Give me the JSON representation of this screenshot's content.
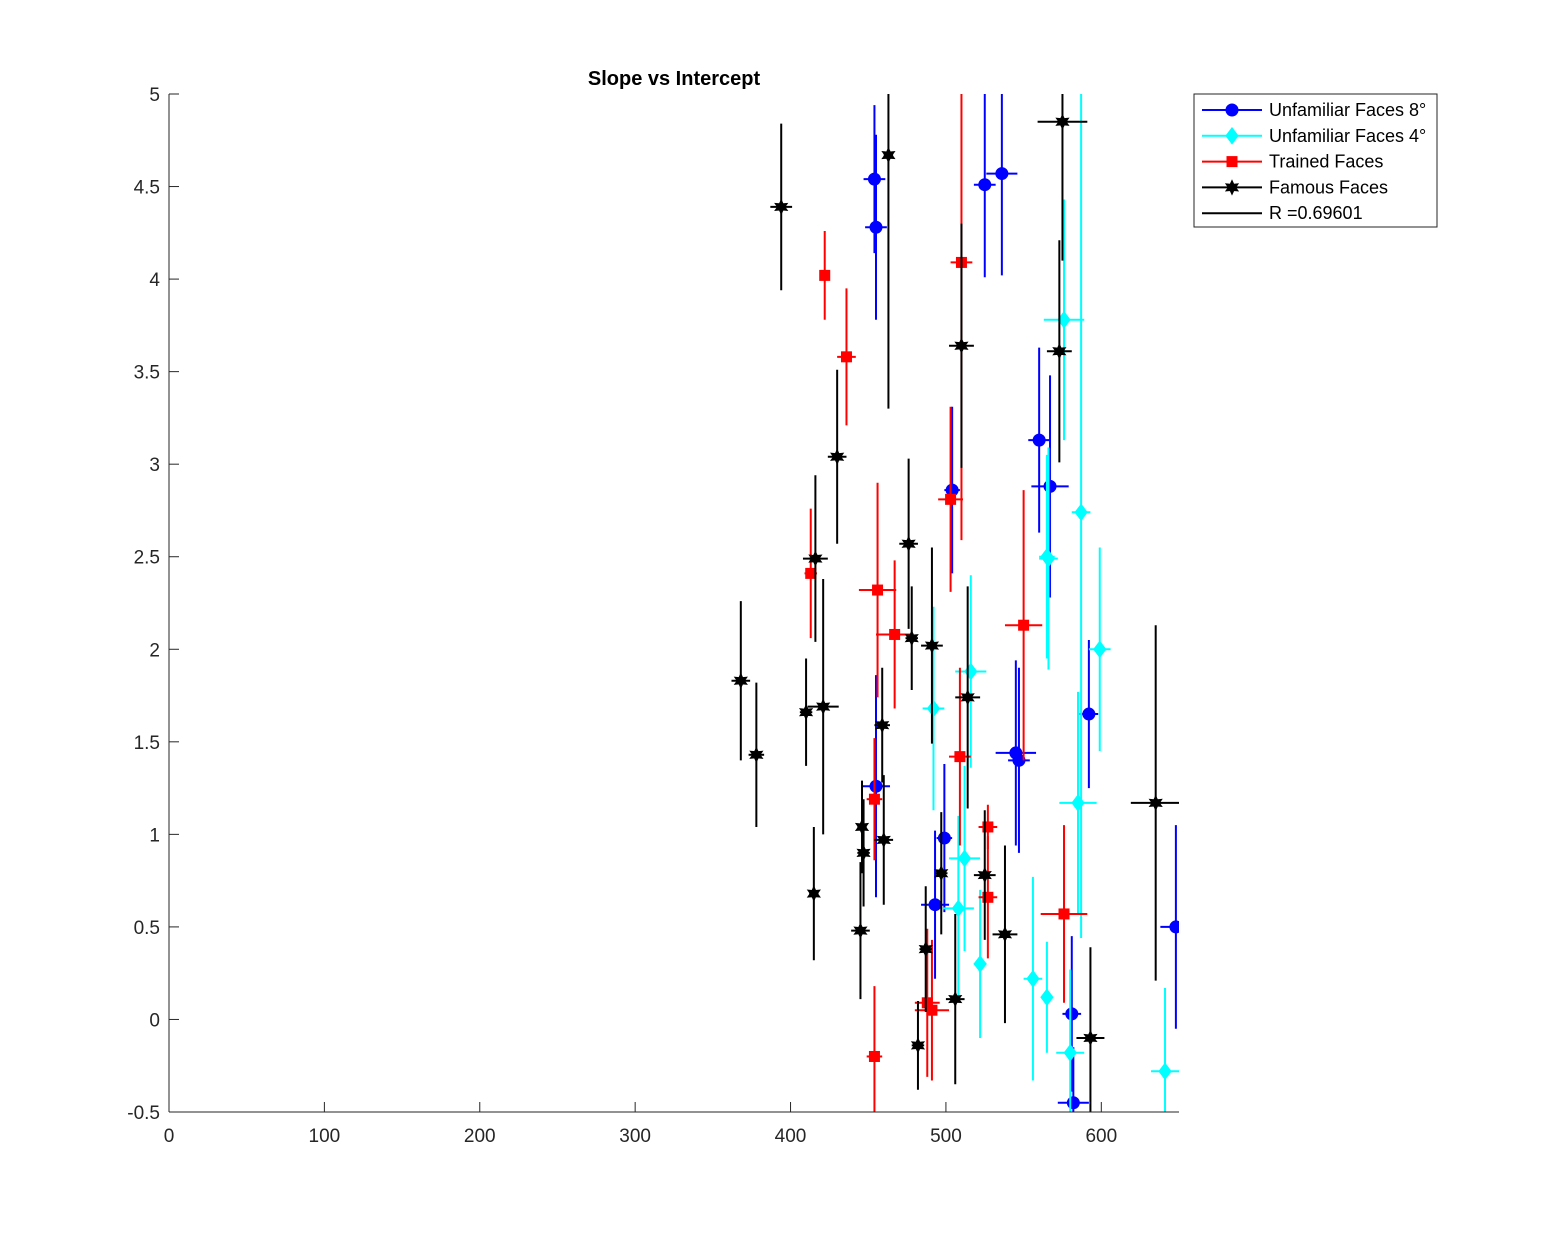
{
  "chart_data": {
    "type": "scatter",
    "title": "Slope vs Intercept",
    "xlabel": "",
    "ylabel": "",
    "xlim": [
      0,
      650
    ],
    "ylim": [
      -0.5,
      5
    ],
    "xticks": [
      0,
      100,
      200,
      300,
      400,
      500,
      600
    ],
    "yticks": [
      -0.5,
      0,
      0.5,
      1,
      1.5,
      2,
      2.5,
      3,
      3.5,
      4,
      4.5,
      5
    ],
    "grid": false,
    "legend_position": "outside-top-right",
    "series": [
      {
        "name": "Unfamiliar Faces 8°",
        "color": "#0000ff",
        "marker": "circle",
        "points": [
          {
            "x": 454,
            "y": 4.54,
            "xerr": 7,
            "yerr": 0.4
          },
          {
            "x": 455,
            "y": 4.28,
            "xerr": 7,
            "yerr": 0.5
          },
          {
            "x": 525,
            "y": 4.51,
            "xerr": 7,
            "yerr": 0.5
          },
          {
            "x": 536,
            "y": 4.57,
            "xerr": 10,
            "yerr": 0.55
          },
          {
            "x": 560,
            "y": 3.13,
            "xerr": 7,
            "yerr": 0.5
          },
          {
            "x": 567,
            "y": 2.88,
            "xerr": 12,
            "yerr": 0.6
          },
          {
            "x": 504,
            "y": 2.86,
            "xerr": 5,
            "yerr": 0.45
          },
          {
            "x": 592,
            "y": 1.65,
            "xerr": 6,
            "yerr": 0.4
          },
          {
            "x": 545,
            "y": 1.44,
            "xerr": 13,
            "yerr": 0.5
          },
          {
            "x": 547,
            "y": 1.4,
            "xerr": 7,
            "yerr": 0.5
          },
          {
            "x": 455,
            "y": 1.26,
            "xerr": 9,
            "yerr": 0.6
          },
          {
            "x": 499,
            "y": 0.98,
            "xerr": 5,
            "yerr": 0.4
          },
          {
            "x": 493,
            "y": 0.62,
            "xerr": 9,
            "yerr": 0.4
          },
          {
            "x": 648,
            "y": 0.5,
            "xerr": 10,
            "yerr": 0.55
          },
          {
            "x": 581,
            "y": 0.03,
            "xerr": 6,
            "yerr": 0.42
          },
          {
            "x": 582,
            "y": -0.45,
            "xerr": 10,
            "yerr": 0.3
          }
        ]
      },
      {
        "name": "Unfamiliar Faces 4°",
        "color": "#00ffff",
        "marker": "diamond",
        "points": [
          {
            "x": 576,
            "y": 3.78,
            "xerr": 13,
            "yerr": 0.65
          },
          {
            "x": 587,
            "y": 2.74,
            "xerr": 6,
            "yerr": 2.3
          },
          {
            "x": 565,
            "y": 2.5,
            "xerr": 5,
            "yerr": 0.55
          },
          {
            "x": 566,
            "y": 2.49,
            "xerr": 6,
            "yerr": 0.6
          },
          {
            "x": 599,
            "y": 2.0,
            "xerr": 7,
            "yerr": 0.55
          },
          {
            "x": 516,
            "y": 1.88,
            "xerr": 10,
            "yerr": 0.52
          },
          {
            "x": 492,
            "y": 1.68,
            "xerr": 7,
            "yerr": 0.55
          },
          {
            "x": 585,
            "y": 1.17,
            "xerr": 12,
            "yerr": 0.6
          },
          {
            "x": 512,
            "y": 0.87,
            "xerr": 10,
            "yerr": 0.5
          },
          {
            "x": 508,
            "y": 0.6,
            "xerr": 10,
            "yerr": 0.5
          },
          {
            "x": 522,
            "y": 0.3,
            "xerr": 4,
            "yerr": 0.4
          },
          {
            "x": 556,
            "y": 0.22,
            "xerr": 6,
            "yerr": 0.55
          },
          {
            "x": 565,
            "y": 0.12,
            "xerr": 3,
            "yerr": 0.3
          },
          {
            "x": 580,
            "y": -0.18,
            "xerr": 9,
            "yerr": 0.45
          },
          {
            "x": 641,
            "y": -0.28,
            "xerr": 9,
            "yerr": 0.45
          }
        ]
      },
      {
        "name": "Trained Faces",
        "color": "#ff0000",
        "marker": "square",
        "points": [
          {
            "x": 510,
            "y": 4.09,
            "xerr": 7,
            "yerr": 1.5
          },
          {
            "x": 422,
            "y": 4.02,
            "xerr": 3,
            "yerr": 0.24
          },
          {
            "x": 436,
            "y": 3.58,
            "xerr": 6,
            "yerr": 0.37
          },
          {
            "x": 503,
            "y": 2.81,
            "xerr": 8,
            "yerr": 0.5
          },
          {
            "x": 413,
            "y": 2.41,
            "xerr": 4,
            "yerr": 0.35
          },
          {
            "x": 456,
            "y": 2.32,
            "xerr": 12,
            "yerr": 0.58
          },
          {
            "x": 550,
            "y": 2.13,
            "xerr": 12,
            "yerr": 0.73
          },
          {
            "x": 467,
            "y": 2.08,
            "xerr": 12,
            "yerr": 0.4
          },
          {
            "x": 509,
            "y": 1.42,
            "xerr": 7,
            "yerr": 0.48
          },
          {
            "x": 454,
            "y": 1.19,
            "xerr": 5,
            "yerr": 0.33
          },
          {
            "x": 527,
            "y": 1.04,
            "xerr": 6,
            "yerr": 0.12
          },
          {
            "x": 527,
            "y": 0.66,
            "xerr": 6,
            "yerr": 0.33
          },
          {
            "x": 576,
            "y": 0.57,
            "xerr": 15,
            "yerr": 0.48
          },
          {
            "x": 488,
            "y": 0.09,
            "xerr": 8,
            "yerr": 0.4
          },
          {
            "x": 491,
            "y": 0.05,
            "xerr": 11,
            "yerr": 0.38
          },
          {
            "x": 454,
            "y": -0.2,
            "xerr": 5,
            "yerr": 0.38
          }
        ]
      },
      {
        "name": "Famous Faces",
        "color": "#000000",
        "marker": "hexagram",
        "points": [
          {
            "x": 575,
            "y": 4.85,
            "xerr": 16,
            "yerr": 0.75
          },
          {
            "x": 463,
            "y": 4.67,
            "xerr": 3,
            "yerr": 1.37
          },
          {
            "x": 394,
            "y": 4.39,
            "xerr": 7,
            "yerr": 0.45
          },
          {
            "x": 510,
            "y": 3.64,
            "xerr": 8,
            "yerr": 0.66
          },
          {
            "x": 573,
            "y": 3.61,
            "xerr": 8,
            "yerr": 0.6
          },
          {
            "x": 430,
            "y": 3.04,
            "xerr": 6,
            "yerr": 0.47
          },
          {
            "x": 476,
            "y": 2.57,
            "xerr": 6,
            "yerr": 0.46
          },
          {
            "x": 416,
            "y": 2.49,
            "xerr": 8,
            "yerr": 0.45
          },
          {
            "x": 478,
            "y": 2.06,
            "xerr": 4,
            "yerr": 0.28
          },
          {
            "x": 491,
            "y": 2.02,
            "xerr": 7,
            "yerr": 0.53
          },
          {
            "x": 368,
            "y": 1.83,
            "xerr": 6,
            "yerr": 0.43
          },
          {
            "x": 514,
            "y": 1.74,
            "xerr": 8,
            "yerr": 0.6
          },
          {
            "x": 421,
            "y": 1.69,
            "xerr": 10,
            "yerr": 0.69
          },
          {
            "x": 410,
            "y": 1.66,
            "xerr": 4,
            "yerr": 0.29
          },
          {
            "x": 459,
            "y": 1.59,
            "xerr": 5,
            "yerr": 0.31
          },
          {
            "x": 378,
            "y": 1.43,
            "xerr": 5,
            "yerr": 0.39
          },
          {
            "x": 635,
            "y": 1.17,
            "xerr": 16,
            "yerr": 0.96
          },
          {
            "x": 446,
            "y": 1.04,
            "xerr": 3,
            "yerr": 0.25
          },
          {
            "x": 460,
            "y": 0.97,
            "xerr": 6,
            "yerr": 0.35
          },
          {
            "x": 447,
            "y": 0.9,
            "xerr": 4,
            "yerr": 0.29
          },
          {
            "x": 497,
            "y": 0.79,
            "xerr": 4,
            "yerr": 0.33
          },
          {
            "x": 525,
            "y": 0.78,
            "xerr": 7,
            "yerr": 0.35
          },
          {
            "x": 415,
            "y": 0.68,
            "xerr": 3,
            "yerr": 0.36
          },
          {
            "x": 445,
            "y": 0.48,
            "xerr": 6,
            "yerr": 0.37
          },
          {
            "x": 538,
            "y": 0.46,
            "xerr": 8,
            "yerr": 0.48
          },
          {
            "x": 487,
            "y": 0.38,
            "xerr": 4,
            "yerr": 0.34
          },
          {
            "x": 506,
            "y": 0.11,
            "xerr": 6,
            "yerr": 0.46
          },
          {
            "x": 593,
            "y": -0.1,
            "xerr": 9,
            "yerr": 0.49
          },
          {
            "x": 482,
            "y": -0.14,
            "xerr": 4,
            "yerr": 0.24
          }
        ]
      }
    ],
    "annotations": [
      {
        "label": "R =0.69601",
        "color": "#000000",
        "style": "line"
      }
    ]
  }
}
